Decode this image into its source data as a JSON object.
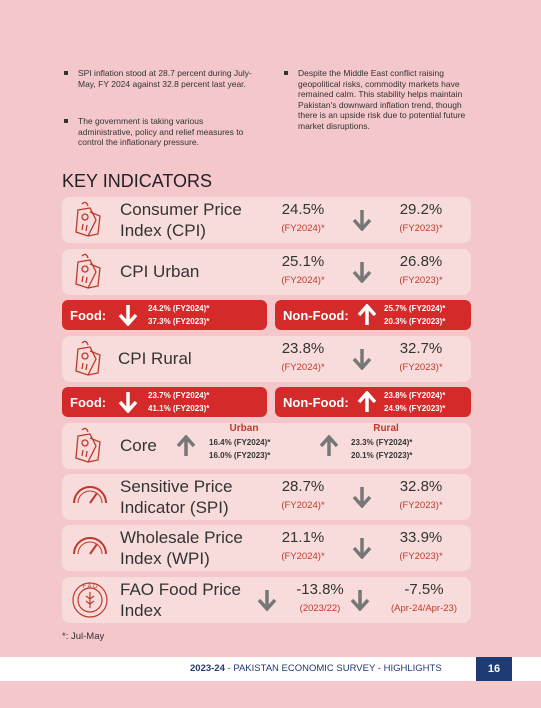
{
  "bullets": [
    "SPI inflation stood at 28.7 percent during July-May, FY 2024 against 32.8 percent last year.",
    "The government is taking various administrative, policy and relief measures to control the inflationary pressure.",
    "Despite the Middle East conflict raising geopolitical risks, commodity markets have remained calm. This stability helps maintain Pakistan's downward inflation trend, though there is an upside risk due to potential future market disruptions."
  ],
  "section_title": "KEY INDICATORS",
  "indicators": [
    {
      "name": "Consumer Price Index (CPI)",
      "current": "24.5%",
      "current_period": "(FY2024)*",
      "previous": "29.2%",
      "previous_period": "(FY2023)*"
    },
    {
      "name": "CPI Urban",
      "current": "25.1%",
      "current_period": "(FY2024)*",
      "previous": "26.8%",
      "previous_period": "(FY2023)*"
    },
    {
      "name": "CPI Rural",
      "current": "23.8%",
      "current_period": "(FY2024)*",
      "previous": "32.7%",
      "previous_period": "(FY2023)*"
    },
    {
      "name": "Sensitive Price Indicator (SPI)",
      "current": "28.7%",
      "current_period": "(FY2024)*",
      "previous": "32.8%",
      "previous_period": "(FY2023)*"
    },
    {
      "name": "Wholesale Price Index (WPI)",
      "current": "21.1%",
      "current_period": "(FY2024)*",
      "previous": "33.9%",
      "previous_period": "(FY2023)*"
    },
    {
      "name": "FAO Food Price Index",
      "current": "-13.8%",
      "current_period": "(2023/22)",
      "previous": "-7.5%",
      "previous_period": "(Apr-24/Apr-23)"
    }
  ],
  "food_breakdowns": [
    {
      "food": {
        "label": "Food:",
        "current": "24.2% (FY2024)*",
        "previous": "37.3% (FY2023)*"
      },
      "non_food": {
        "label": "Non-Food:",
        "current": "25.7% (FY2024)*",
        "previous": "20.3% (FY2023)*"
      }
    },
    {
      "food": {
        "label": "Food:",
        "current": "23.7% (FY2024)*",
        "previous": "41.1% (FY2023)*"
      },
      "non_food": {
        "label": "Non-Food:",
        "current": "23.8% (FY2024)*",
        "previous": "24.9% (FY2023)*"
      }
    }
  ],
  "core": {
    "name": "Core",
    "urban": {
      "heading": "Urban",
      "current": "16.4% (FY2024)*",
      "previous": "16.0% (FY2023)*"
    },
    "rural": {
      "heading": "Rural",
      "current": "23.3% (FY2024)*",
      "previous": "20.1% (FY2023)*"
    }
  },
  "footnote": "*: Jul-May",
  "footer": {
    "year": "2023-24",
    "title": " - PAKISTAN ECONOMIC SURVEY - HIGHLIGHTS",
    "page": "16"
  }
}
